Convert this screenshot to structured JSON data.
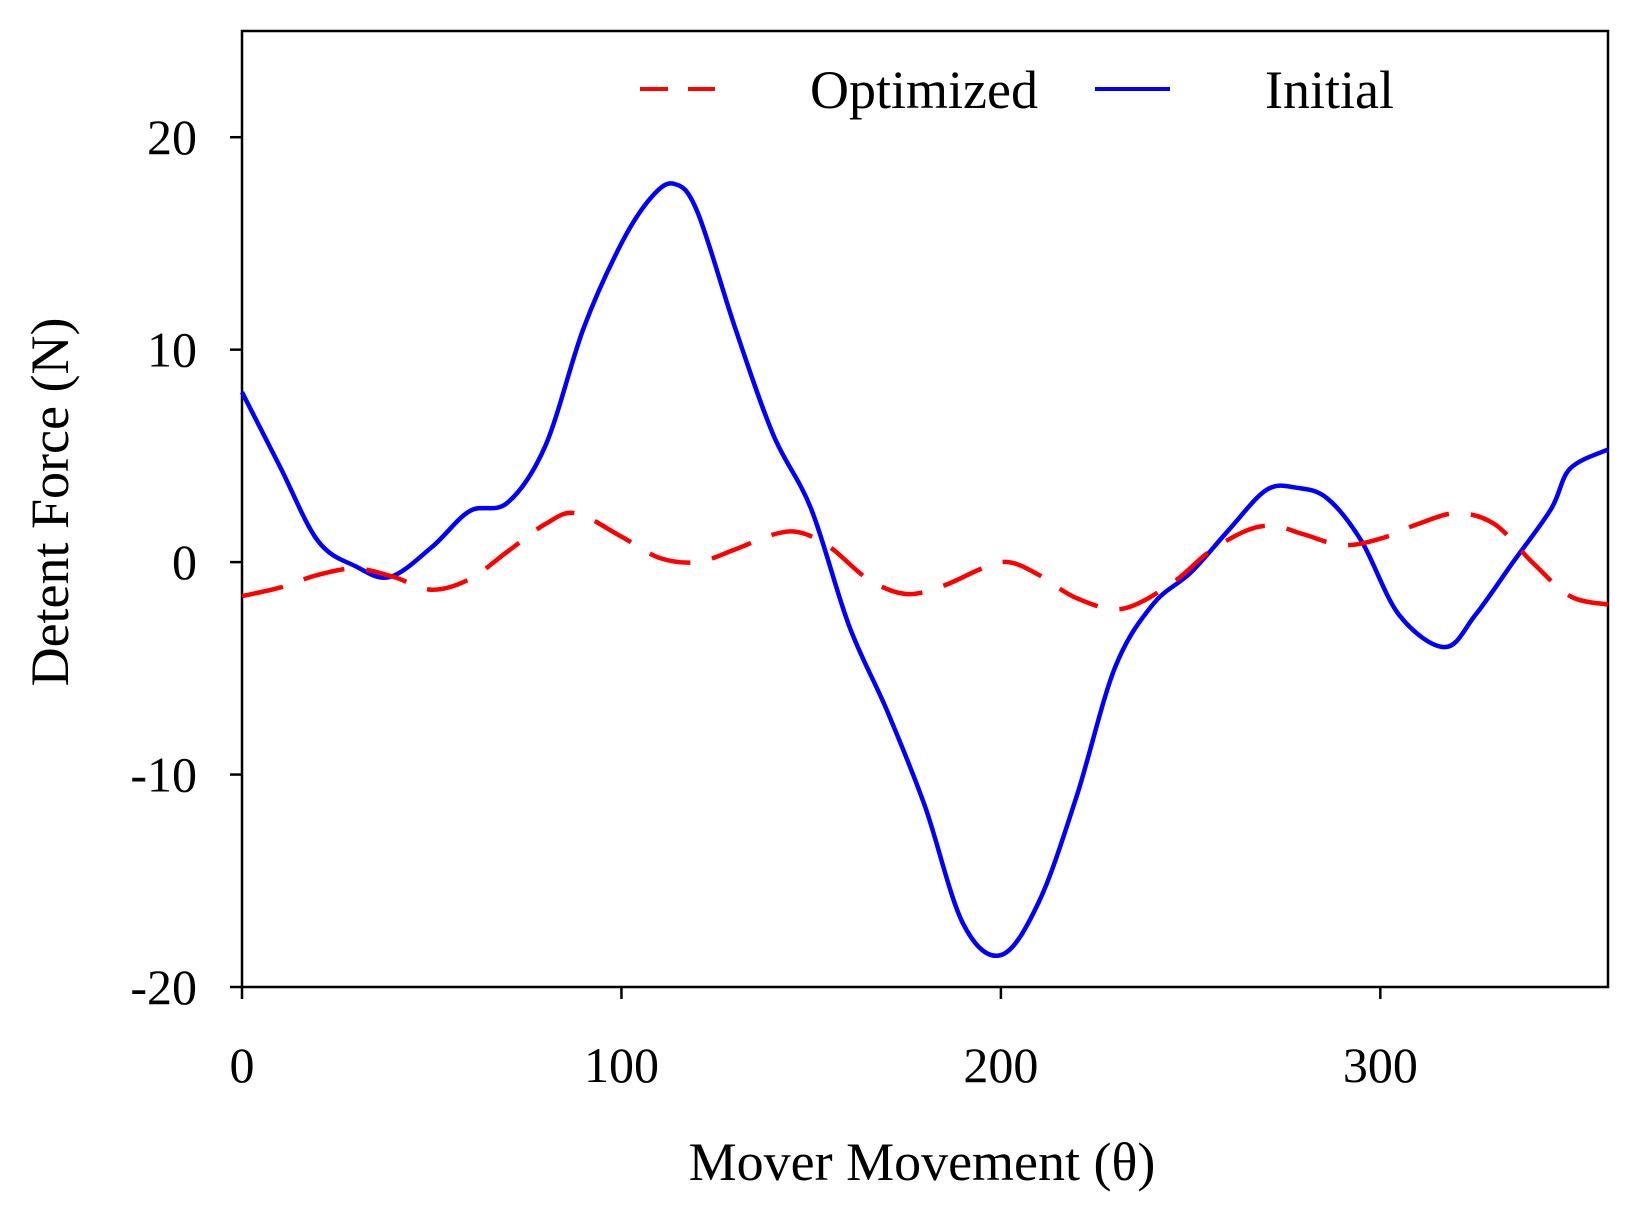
{
  "chart_data": {
    "type": "line",
    "title": "",
    "xlabel": "Mover Movement (θ)",
    "ylabel": "Detent Force (N)",
    "xlim": [
      0,
      360
    ],
    "ylim": [
      -20,
      25
    ],
    "xticks": [
      0,
      100,
      200,
      300
    ],
    "yticks": [
      -20,
      -10,
      0,
      10,
      20
    ],
    "xtick_labels": [
      "0",
      "100",
      "200",
      "300"
    ],
    "ytick_labels": [
      "-20",
      "-10",
      "0",
      "10",
      "20"
    ],
    "grid": false,
    "legend_position": "top-center",
    "series": [
      {
        "name": "Optimized",
        "color": "#ff0000",
        "style": "dashed",
        "x": [
          0,
          10,
          20,
          30,
          40,
          50,
          60,
          70,
          80,
          88,
          100,
          110,
          120,
          130,
          140,
          147,
          155,
          165,
          175,
          185,
          195,
          202,
          210,
          220,
          232,
          245,
          255,
          265,
          272,
          280,
          290,
          300,
          310,
          320,
          330,
          340,
          350,
          360
        ],
        "values": [
          -1.6,
          -1.2,
          -0.6,
          -0.3,
          -0.7,
          -1.3,
          -0.8,
          0.5,
          1.8,
          2.3,
          1.2,
          0.2,
          0.0,
          0.6,
          1.3,
          1.4,
          0.7,
          -0.8,
          -1.5,
          -1.1,
          -0.3,
          0.0,
          -0.6,
          -1.7,
          -2.2,
          -1.0,
          0.5,
          1.5,
          1.7,
          1.3,
          0.8,
          1.1,
          1.8,
          2.3,
          1.8,
          0.0,
          -1.6,
          -2.0
        ]
      },
      {
        "name": "Initial",
        "color": "#0000ff",
        "style": "solid",
        "x": [
          0,
          10,
          20,
          30,
          39,
          50,
          60,
          70,
          80,
          90,
          100,
          108,
          114,
          120,
          130,
          140,
          150,
          160,
          170,
          180,
          190,
          200,
          210,
          220,
          230,
          240,
          250,
          260,
          270,
          278,
          286,
          295,
          305,
          317,
          325,
          335,
          345,
          350,
          360
        ],
        "values": [
          8.0,
          4.5,
          1.0,
          -0.2,
          -0.7,
          0.7,
          2.4,
          2.8,
          5.5,
          11.0,
          15.0,
          17.2,
          17.8,
          16.5,
          11.0,
          6.0,
          2.5,
          -3.0,
          -7.0,
          -11.5,
          -17.0,
          -18.5,
          -16.0,
          -11.0,
          -5.0,
          -2.0,
          -0.5,
          1.5,
          3.4,
          3.5,
          3.0,
          1.0,
          -2.5,
          -4.0,
          -2.5,
          0.0,
          2.5,
          4.4,
          5.3
        ]
      }
    ]
  }
}
